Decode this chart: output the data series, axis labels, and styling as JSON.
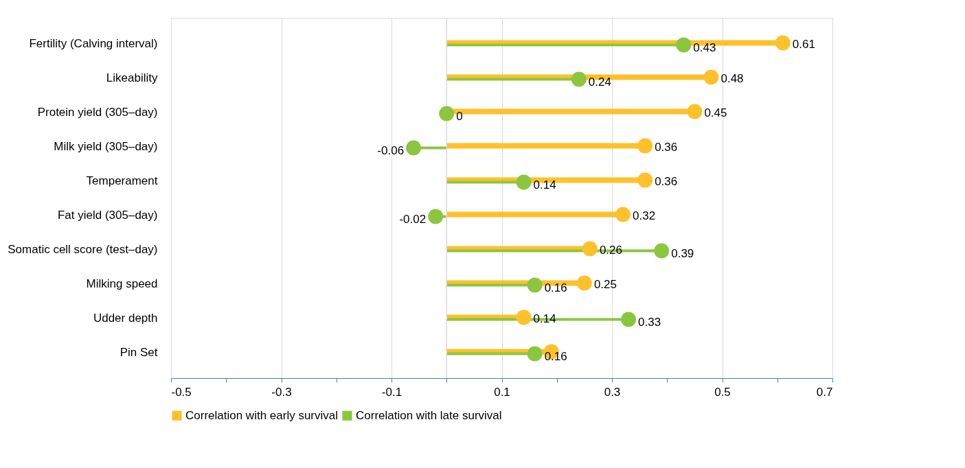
{
  "chart_data": {
    "type": "lollipop",
    "orientation": "horizontal",
    "categories": [
      "Fertility (Calving interval)",
      "Likeability",
      "Protein yield (305–day)",
      "Milk yield (305–day)",
      "Temperament",
      "Fat yield (305–day)",
      "Somatic cell score (test–day)",
      "Milking speed",
      "Udder depth",
      "Pin Set"
    ],
    "series": [
      {
        "name": "Correlation with early survival",
        "color": "#fec12b",
        "values": [
          0.61,
          0.48,
          0.45,
          0.36,
          0.36,
          0.32,
          0.26,
          0.25,
          0.14,
          0.19
        ],
        "value_labels": [
          "0.61",
          "0.48",
          "0.45",
          "0.36",
          "0.36",
          "0.32",
          "0.26",
          "0.25",
          "0.14",
          null
        ]
      },
      {
        "name": "Correlation with late survival",
        "color": "#8cc63f",
        "values": [
          0.43,
          0.24,
          0,
          -0.06,
          0.14,
          -0.02,
          0.39,
          0.16,
          0.33,
          0.16
        ],
        "value_labels": [
          "0.43",
          "0.24",
          "0",
          "-0.06",
          "0.14",
          "-0.02",
          "0.39",
          "0.16",
          "0.33",
          "0.16"
        ]
      }
    ],
    "xlim": [
      -0.5,
      0.7
    ],
    "xticks": [
      -0.5,
      {
        "value": -0.4,
        "label": null
      },
      -0.3,
      {
        "value": -0.2,
        "label": null
      },
      -0.1,
      {
        "value": 0,
        "label": null
      },
      0.1,
      {
        "value": 0.2,
        "label": null
      },
      0.3,
      {
        "value": 0.4,
        "label": null
      },
      0.5,
      {
        "value": 0.6,
        "label": null
      },
      0.7
    ],
    "ref_lines": [
      {
        "axis": "x",
        "value": 0,
        "color": "#d9d9d9"
      }
    ],
    "grid": "x",
    "legend": "bottom",
    "marker": "circle"
  }
}
